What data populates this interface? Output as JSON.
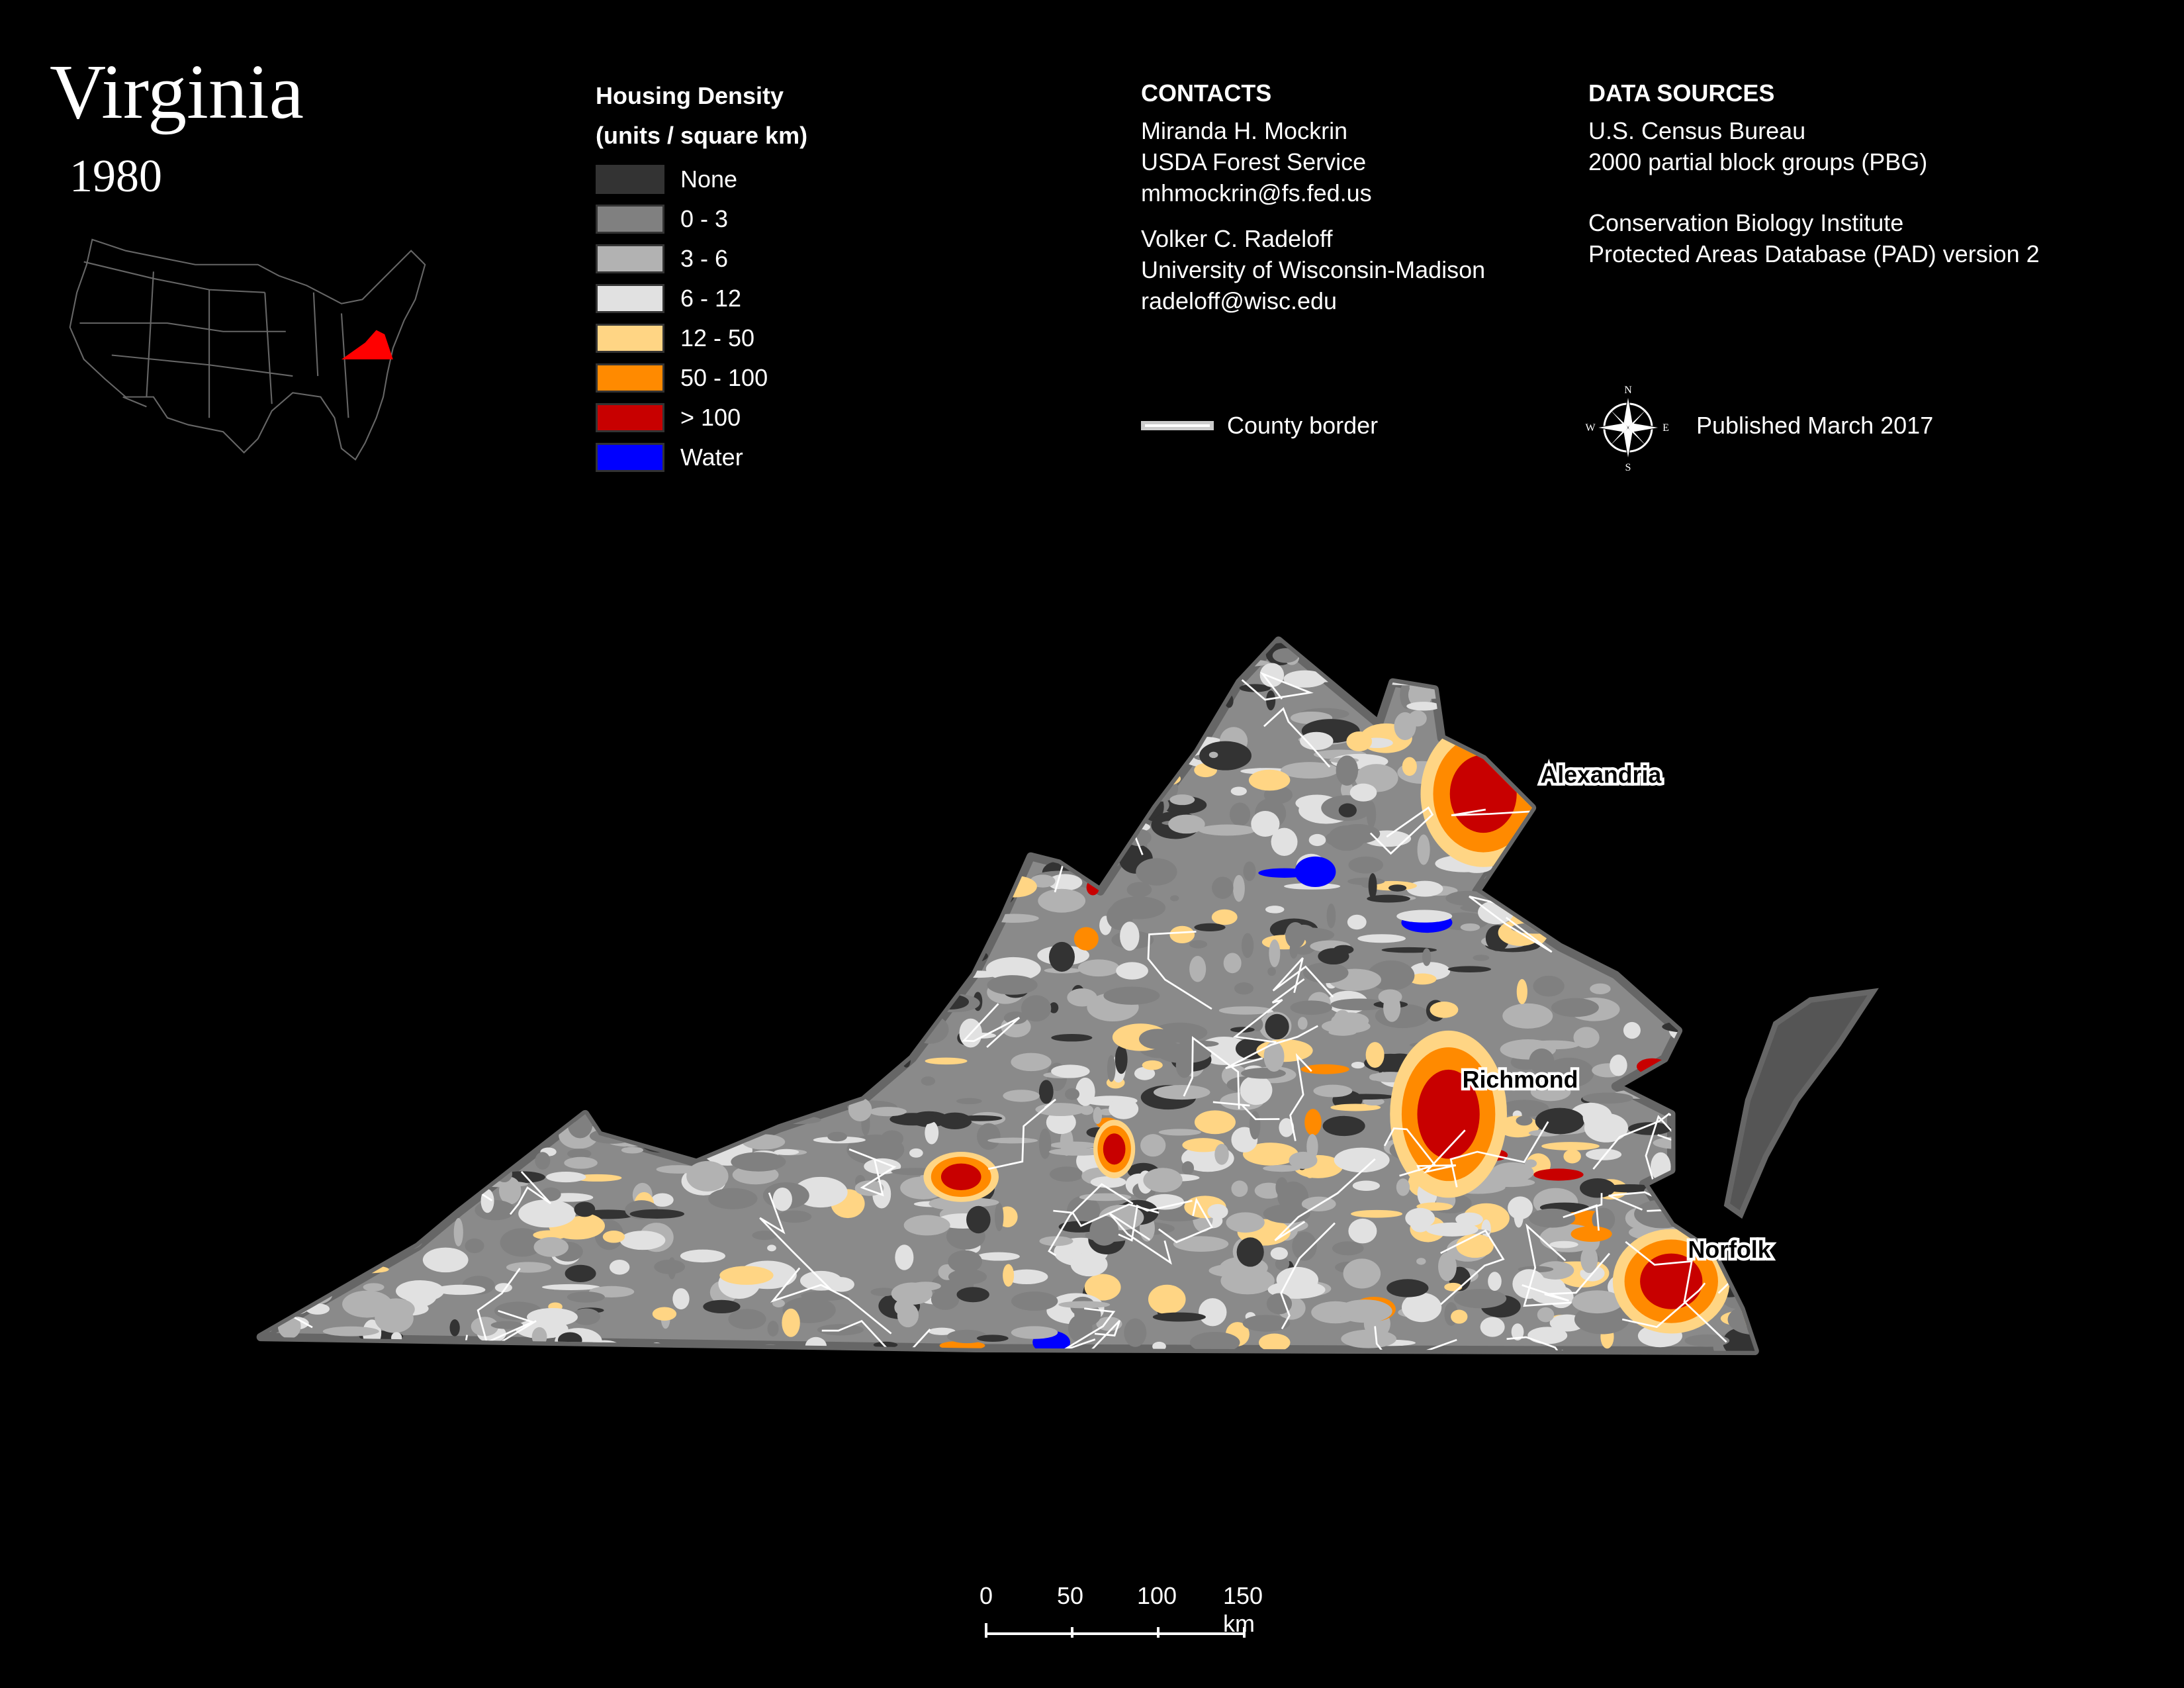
{
  "title": "Virginia",
  "year": "1980",
  "legend": {
    "title_line1": "Housing Density",
    "title_line2": "(units / square km)",
    "items": [
      {
        "label": "None",
        "color": "#333333"
      },
      {
        "label": "0 - 3",
        "color": "#808080"
      },
      {
        "label": "3 - 6",
        "color": "#b2b2b2"
      },
      {
        "label": "6 - 12",
        "color": "#e1e1e1"
      },
      {
        "label": "12 - 50",
        "color": "#ffd584"
      },
      {
        "label": "50 - 100",
        "color": "#ff8a00"
      },
      {
        "label": "> 100",
        "color": "#c80000"
      },
      {
        "label": "Water",
        "color": "#0000ff"
      }
    ],
    "county_border": "County border"
  },
  "contacts": {
    "heading": "CONTACTS",
    "people": [
      {
        "name": "Miranda H. Mockrin",
        "org": "USDA Forest Service",
        "email": "mhmockrin@fs.fed.us"
      },
      {
        "name": "Volker C. Radeloff",
        "org": "University of Wisconsin-Madison",
        "email": "radeloff@wisc.edu"
      }
    ]
  },
  "data_sources": {
    "heading": "DATA SOURCES",
    "sources": [
      {
        "line1": "U.S. Census Bureau",
        "line2": "2000 partial block groups (PBG)"
      },
      {
        "line1": "Conservation Biology Institute",
        "line2": "Protected Areas Database (PAD) version 2"
      }
    ]
  },
  "published": "Published March 2017",
  "compass": {
    "n": "N",
    "s": "S",
    "e": "E",
    "w": "W"
  },
  "inset_highlight_color": "#ff0000",
  "cities": [
    "Alexandria",
    "Richmond",
    "Norfolk"
  ],
  "scale_bar": {
    "labels": [
      "0",
      "50",
      "100",
      "150 km"
    ]
  }
}
